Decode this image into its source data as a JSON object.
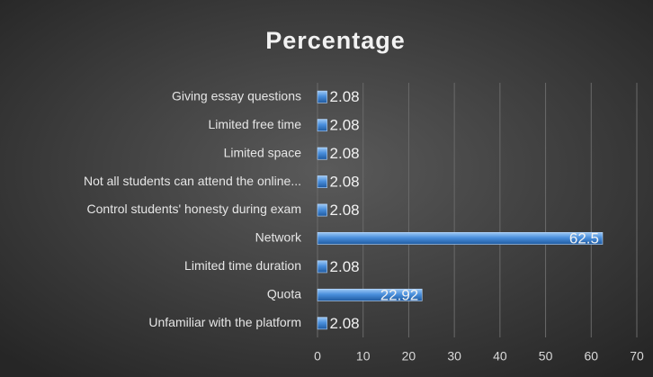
{
  "chart_data": {
    "type": "bar",
    "orientation": "horizontal",
    "title": "Percentage",
    "categories": [
      "Giving essay questions",
      "Limited free time",
      "Limited space",
      "Not all students can attend the online...",
      "Control students' honesty during exam",
      "Network",
      "Limited time duration",
      "Quota",
      "Unfamiliar with the platform"
    ],
    "values": [
      2.08,
      2.08,
      2.08,
      2.08,
      2.08,
      62.5,
      2.08,
      22.92,
      2.08
    ],
    "color": "#4a8fdc",
    "xlim": [
      0,
      70
    ],
    "xticks": [
      0,
      10,
      20,
      30,
      40,
      50,
      60,
      70
    ],
    "grid": true
  }
}
